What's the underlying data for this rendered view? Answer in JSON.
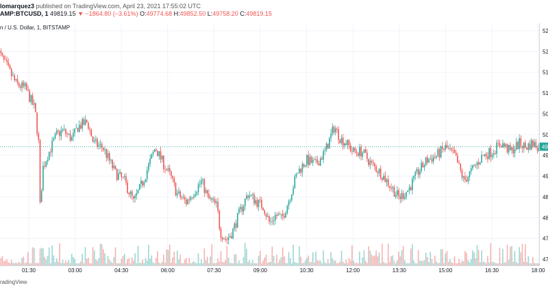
{
  "header": {
    "author": "lomarquez3",
    "published": "published on TradingView.com, April 23, 2021 17:55:02 UTC",
    "symbol": "AMP:BTCUSD, 1",
    "last": "49819.15",
    "change": "▼ −1864.80 (−3.61%)",
    "o_label": "O:",
    "o_value": "49774.68",
    "h_label": "H:",
    "h_value": "49852.50",
    "l_label": "L:",
    "l_value": "49758.20",
    "c_label": "C:",
    "c_value": "49819.15"
  },
  "legend": "n / U.S. Dollar, 1, BITSTAMP",
  "footer": "radingView",
  "colors": {
    "up": "#26a69a",
    "down": "#ef5350",
    "price_line": "#26a69a",
    "grid": "#f0f3fa",
    "axis_text": "#131722"
  },
  "chart_data": {
    "type": "candlestick",
    "ylim": [
      47000,
      52750
    ],
    "y_ticks": [
      "52",
      "52",
      "51",
      "51",
      "50",
      "50",
      "49",
      "49",
      "48",
      "48",
      "47",
      "47"
    ],
    "x_ticks": [
      "01:30",
      "03:00",
      "04:30",
      "06:00",
      "07:30",
      "09:00",
      "10:30",
      "12:00",
      "13:30",
      "15:00",
      "16:30",
      "18:00"
    ],
    "x_tick_hours": [
      1.5,
      3,
      4.5,
      6,
      7.5,
      9,
      10.5,
      12,
      13.5,
      15,
      16.5,
      18
    ],
    "x_start_hour": 0.5,
    "last_price": 49819.15,
    "last_price_label": "49",
    "price_series": {
      "hours": [
        0.5,
        0.8,
        1.1,
        1.4,
        1.7,
        1.82,
        1.87,
        1.95,
        2.1,
        2.4,
        2.6,
        2.9,
        3.1,
        3.4,
        3.6,
        3.9,
        4.1,
        4.3,
        4.6,
        4.9,
        5.2,
        5.4,
        5.6,
        5.8,
        6.1,
        6.3,
        6.6,
        6.9,
        7.1,
        7.3,
        7.6,
        7.7,
        7.9,
        8.1,
        8.3,
        8.6,
        8.9,
        9.1,
        9.3,
        9.5,
        9.7,
        9.9,
        10.2,
        10.5,
        10.8,
        11.1,
        11.4,
        11.6,
        11.8,
        12.0,
        12.3,
        12.6,
        12.9,
        13.2,
        13.5,
        13.8,
        14.1,
        14.4,
        14.7,
        15.0,
        15.3,
        15.6,
        15.9,
        16.2,
        16.5,
        16.8,
        17.1,
        17.4,
        17.6,
        17.8,
        18.1
      ],
      "prices": [
        52100,
        51700,
        51300,
        51200,
        50700,
        49900,
        48300,
        49300,
        49600,
        50100,
        50200,
        50000,
        50300,
        50400,
        49900,
        49800,
        49500,
        49200,
        49000,
        48500,
        49000,
        49400,
        49800,
        49500,
        49100,
        48700,
        48500,
        48800,
        49000,
        48600,
        48400,
        47800,
        47600,
        47800,
        48200,
        48700,
        48500,
        48400,
        48000,
        48200,
        48100,
        48500,
        49200,
        49500,
        49400,
        49700,
        50300,
        50000,
        49900,
        49700,
        49700,
        49400,
        49200,
        48900,
        48600,
        48800,
        49200,
        49500,
        49600,
        49800,
        49600,
        49000,
        49300,
        49600,
        49700,
        49900,
        49700,
        49900,
        49800,
        49900,
        49800
      ]
    }
  }
}
